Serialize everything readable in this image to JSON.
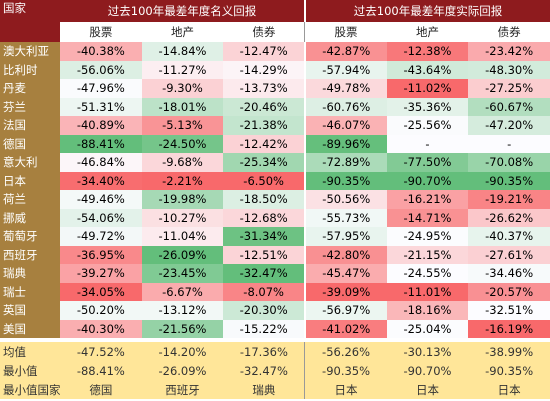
{
  "header": {
    "country": "国家",
    "groups": [
      "过去100年最差年度名义回报",
      "过去100年最差年度实际回报"
    ],
    "subheaders": [
      "股票",
      "地产",
      "债券",
      "股票",
      "地产",
      "债券"
    ]
  },
  "table": {
    "rows": [
      [
        "澳大利亚",
        "-40.38%",
        "-14.84%",
        "-12.47%",
        "-42.87%",
        "-12.38%",
        "-23.42%"
      ],
      [
        "比利时",
        "-56.06%",
        "-11.27%",
        "-14.29%",
        "-57.94%",
        "-43.64%",
        "-48.30%"
      ],
      [
        "丹麦",
        "-47.96%",
        "-9.30%",
        "-13.73%",
        "-49.78%",
        "-11.02%",
        "-27.25%"
      ],
      [
        "芬兰",
        "-51.31%",
        "-18.01%",
        "-20.46%",
        "-60.76%",
        "-35.36%",
        "-60.67%"
      ],
      [
        "法国",
        "-40.89%",
        "-5.13%",
        "-21.38%",
        "-46.07%",
        "-25.56%",
        "-47.20%"
      ],
      [
        "德国",
        "-88.41%",
        "-24.50%",
        "-12.42%",
        "-89.96%",
        "-",
        "-"
      ],
      [
        "意大利",
        "-46.84%",
        "-9.68%",
        "-25.34%",
        "-72.89%",
        "-77.50%",
        "-70.08%"
      ],
      [
        "日本",
        "-34.40%",
        "-2.21%",
        "-6.50%",
        "-90.35%",
        "-90.70%",
        "-90.35%"
      ],
      [
        "荷兰",
        "-49.46%",
        "-19.98%",
        "-18.50%",
        "-50.56%",
        "-16.21%",
        "-19.21%"
      ],
      [
        "挪威",
        "-54.06%",
        "-10.27%",
        "-12.68%",
        "-55.73%",
        "-14.71%",
        "-26.62%"
      ],
      [
        "葡萄牙",
        "-49.72%",
        "-11.04%",
        "-31.34%",
        "-57.95%",
        "-24.95%",
        "-40.37%"
      ],
      [
        "西班牙",
        "-36.95%",
        "-26.09%",
        "-12.51%",
        "-42.80%",
        "-21.15%",
        "-27.61%"
      ],
      [
        "瑞典",
        "-39.27%",
        "-23.45%",
        "-32.47%",
        "-45.47%",
        "-24.55%",
        "-34.46%"
      ],
      [
        "瑞士",
        "-34.05%",
        "-6.67%",
        "-8.07%",
        "-39.09%",
        "-11.01%",
        "-20.57%"
      ],
      [
        "英国",
        "-50.20%",
        "-13.12%",
        "-20.30%",
        "-56.97%",
        "-18.16%",
        "-32.51%"
      ],
      [
        "美国",
        "-40.30%",
        "-21.56%",
        "-15.22%",
        "-41.02%",
        "-25.04%",
        "-16.19%"
      ]
    ]
  },
  "footer": {
    "rows": [
      [
        "均值",
        "-47.52%",
        "-14.20%",
        "-17.36%",
        "-56.26%",
        "-30.13%",
        "-38.99%"
      ],
      [
        "最小值",
        "-88.41%",
        "-26.09%",
        "-32.47%",
        "-90.35%",
        "-90.70%",
        "-90.35%"
      ],
      [
        "最小值国家",
        "德国",
        "西班牙",
        "瑞典",
        "日本",
        "日本",
        "日本"
      ]
    ]
  }
}
